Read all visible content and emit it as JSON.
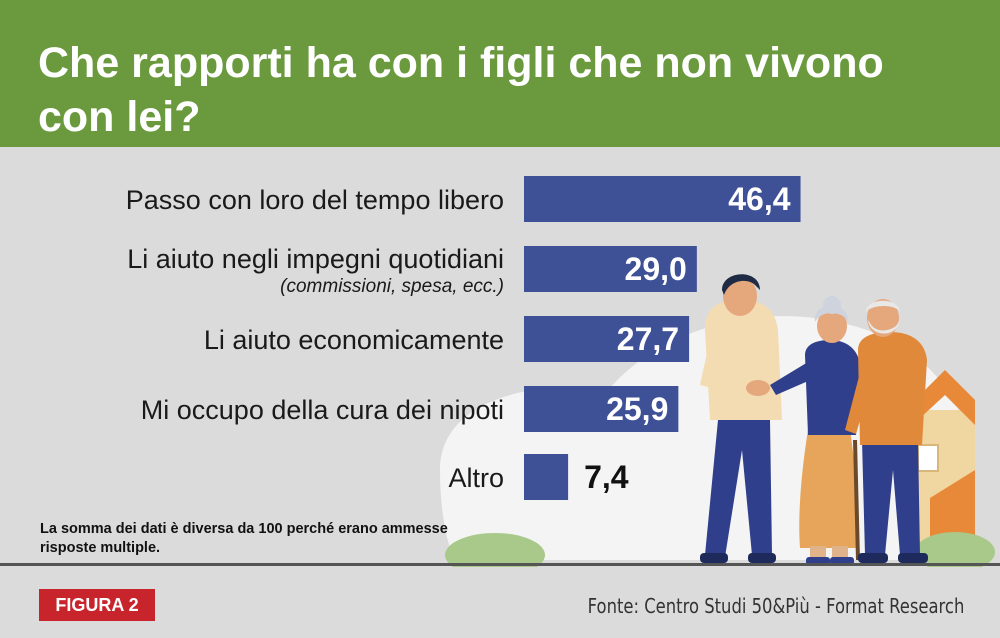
{
  "title": "Che rapporti ha con i figli che non vivono con lei?",
  "chart_data": {
    "type": "bar",
    "orientation": "horizontal",
    "categories": [
      "Passo con loro del tempo libero",
      "Li aiuto negli impegni quotidiani",
      "Li aiuto economicamente",
      "Mi occupo della cura dei nipoti",
      "Altro"
    ],
    "subcategories": [
      "",
      "(commissioni, spesa, ecc.)",
      "",
      "",
      ""
    ],
    "values": [
      46.4,
      29.0,
      27.7,
      25.9,
      7.4
    ],
    "value_labels": [
      "46,4",
      "29,0",
      "27,7",
      "25,9",
      "7,4"
    ],
    "bar_color": "#3e5096",
    "grid": false,
    "legend": "none"
  },
  "note": "La somma dei dati è diversa da 100 perché erano ammesse risposte multiple.",
  "figure_label": "FIGURA 2",
  "source": "Fonte: Centro Studi 50&Più - Format Research",
  "colors": {
    "header": "#6a9a3d",
    "background": "#dcdbdb",
    "badge": "#c8242b",
    "bar": "#3e5096"
  }
}
